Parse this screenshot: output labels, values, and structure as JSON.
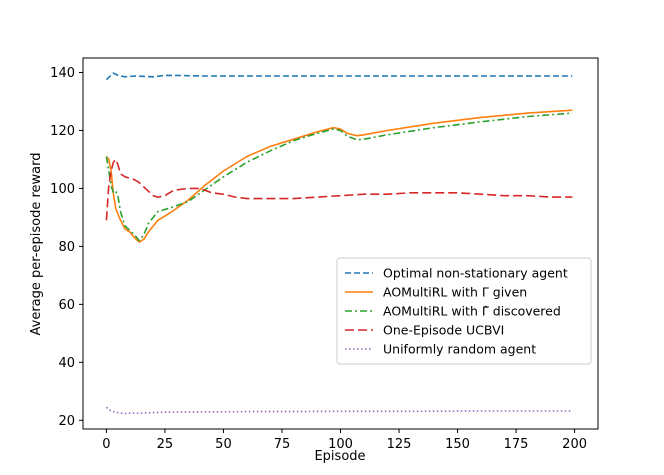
{
  "chart_data": {
    "type": "line",
    "xlabel": "Episode",
    "ylabel": "Average per-episode reward",
    "xlim": [
      -10,
      210
    ],
    "ylim": [
      17,
      145
    ],
    "xticks": [
      0,
      25,
      50,
      75,
      100,
      125,
      150,
      175,
      200
    ],
    "yticks": [
      20,
      40,
      60,
      80,
      100,
      120,
      140
    ],
    "grid": false,
    "legend_position": "lower-right",
    "series": [
      {
        "name": "Optimal non-stationary agent",
        "color": "#1f77b4",
        "dash": "dashed",
        "x": [
          0,
          3,
          5,
          8,
          12,
          20,
          25,
          30,
          40,
          60,
          80,
          100,
          125,
          150,
          175,
          199
        ],
        "y": [
          137.5,
          139.8,
          139.0,
          138.5,
          138.8,
          138.5,
          139.0,
          139.0,
          138.8,
          138.8,
          138.8,
          138.8,
          138.8,
          138.8,
          138.8,
          138.8
        ]
      },
      {
        "name": "AOMultiRL with Γ given",
        "color": "#ff7f0e",
        "dash": "solid",
        "x": [
          0,
          1,
          2,
          3,
          4,
          5,
          6,
          8,
          10,
          12,
          14,
          16,
          18,
          22,
          28,
          35,
          42,
          50,
          60,
          70,
          80,
          90,
          97,
          100,
          103,
          107,
          110,
          120,
          140,
          160,
          180,
          199
        ],
        "y": [
          111,
          110,
          106,
          98,
          93,
          91,
          89,
          86,
          85,
          83,
          81.5,
          82.5,
          85,
          89,
          92,
          96,
          101,
          106,
          111,
          114.5,
          117,
          119.5,
          121,
          120.5,
          119,
          118.2,
          118.5,
          120,
          122.5,
          124.5,
          126,
          127
        ]
      },
      {
        "name": "AOMultiRL with Γ̂ discovered",
        "color": "#2ca02c",
        "dash": "dashdot",
        "x": [
          0,
          1,
          2,
          3,
          4,
          5,
          6,
          8,
          10,
          12,
          14,
          16,
          18,
          22,
          28,
          35,
          42,
          50,
          60,
          70,
          80,
          90,
          97,
          100,
          103,
          107,
          110,
          120,
          140,
          160,
          180,
          199
        ],
        "y": [
          111,
          106,
          101,
          98.5,
          99,
          97,
          92,
          87,
          85.5,
          84,
          82,
          84,
          88,
          92,
          93.5,
          95.5,
          99.5,
          104,
          109,
          113,
          116.5,
          119,
          120.5,
          120,
          118,
          116.8,
          117,
          118.5,
          121,
          123,
          124.8,
          126
        ]
      },
      {
        "name": "One-Episode UCBVI",
        "color": "#d62728",
        "dash": "longdash",
        "x": [
          0,
          1,
          2,
          3,
          4,
          5,
          6,
          8,
          10,
          12,
          14,
          16,
          18,
          20,
          22,
          25,
          28,
          30,
          35,
          40,
          45,
          50,
          55,
          60,
          70,
          80,
          90,
          100,
          110,
          120,
          130,
          140,
          150,
          160,
          170,
          180,
          190,
          199
        ],
        "y": [
          89,
          101,
          106,
          109,
          110,
          108,
          105,
          104,
          103.5,
          103,
          102,
          100.5,
          99,
          97.5,
          97,
          97.5,
          99,
          99.5,
          100,
          100,
          98.5,
          98,
          97,
          96.5,
          96.5,
          96.5,
          97,
          97.5,
          98,
          98,
          98.5,
          98.5,
          98.5,
          98,
          97.5,
          97.5,
          97,
          97
        ]
      },
      {
        "name": "Uniformly random agent",
        "color": "#9467bd",
        "dash": "dotted",
        "x": [
          0,
          2,
          4,
          6,
          8,
          10,
          14,
          18,
          25,
          40,
          60,
          80,
          100,
          130,
          160,
          199
        ],
        "y": [
          24.5,
          23.2,
          22.8,
          22.5,
          22.3,
          22.5,
          22.4,
          22.6,
          22.8,
          22.9,
          23.0,
          23.0,
          23.1,
          23.1,
          23.2,
          23.2
        ]
      }
    ]
  }
}
